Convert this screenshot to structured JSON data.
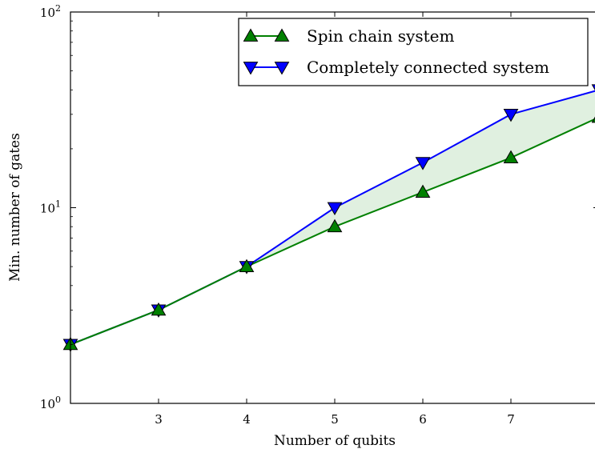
{
  "chart_data": {
    "type": "line",
    "title": "",
    "xlabel": "Number of qubits",
    "ylabel": "Min. number of gates",
    "xlim": [
      2,
      8
    ],
    "ylim": [
      1,
      100
    ],
    "yscale": "log",
    "grid": false,
    "legend_position": "top-right",
    "x_ticks": [
      3,
      4,
      5,
      6,
      7
    ],
    "y_ticks": [
      {
        "value": 1,
        "base": "10",
        "exp": "0"
      },
      {
        "value": 10,
        "base": "10",
        "exp": "1"
      },
      {
        "value": 100,
        "base": "10",
        "exp": "2"
      }
    ],
    "fill_between": {
      "color": "#008000",
      "opacity": 0.12
    },
    "series": [
      {
        "name": "Spin chain system",
        "color": "#008000",
        "marker": "triangle-up",
        "x": [
          2,
          3,
          4,
          5,
          6,
          7,
          8
        ],
        "y": [
          2,
          3,
          5,
          8,
          12,
          18,
          29
        ]
      },
      {
        "name": "Completely connected system",
        "color": "#0000ff",
        "marker": "triangle-down",
        "x": [
          2,
          3,
          4,
          5,
          6,
          7,
          8
        ],
        "y": [
          2,
          3,
          5,
          10,
          17,
          30,
          40
        ]
      }
    ]
  }
}
